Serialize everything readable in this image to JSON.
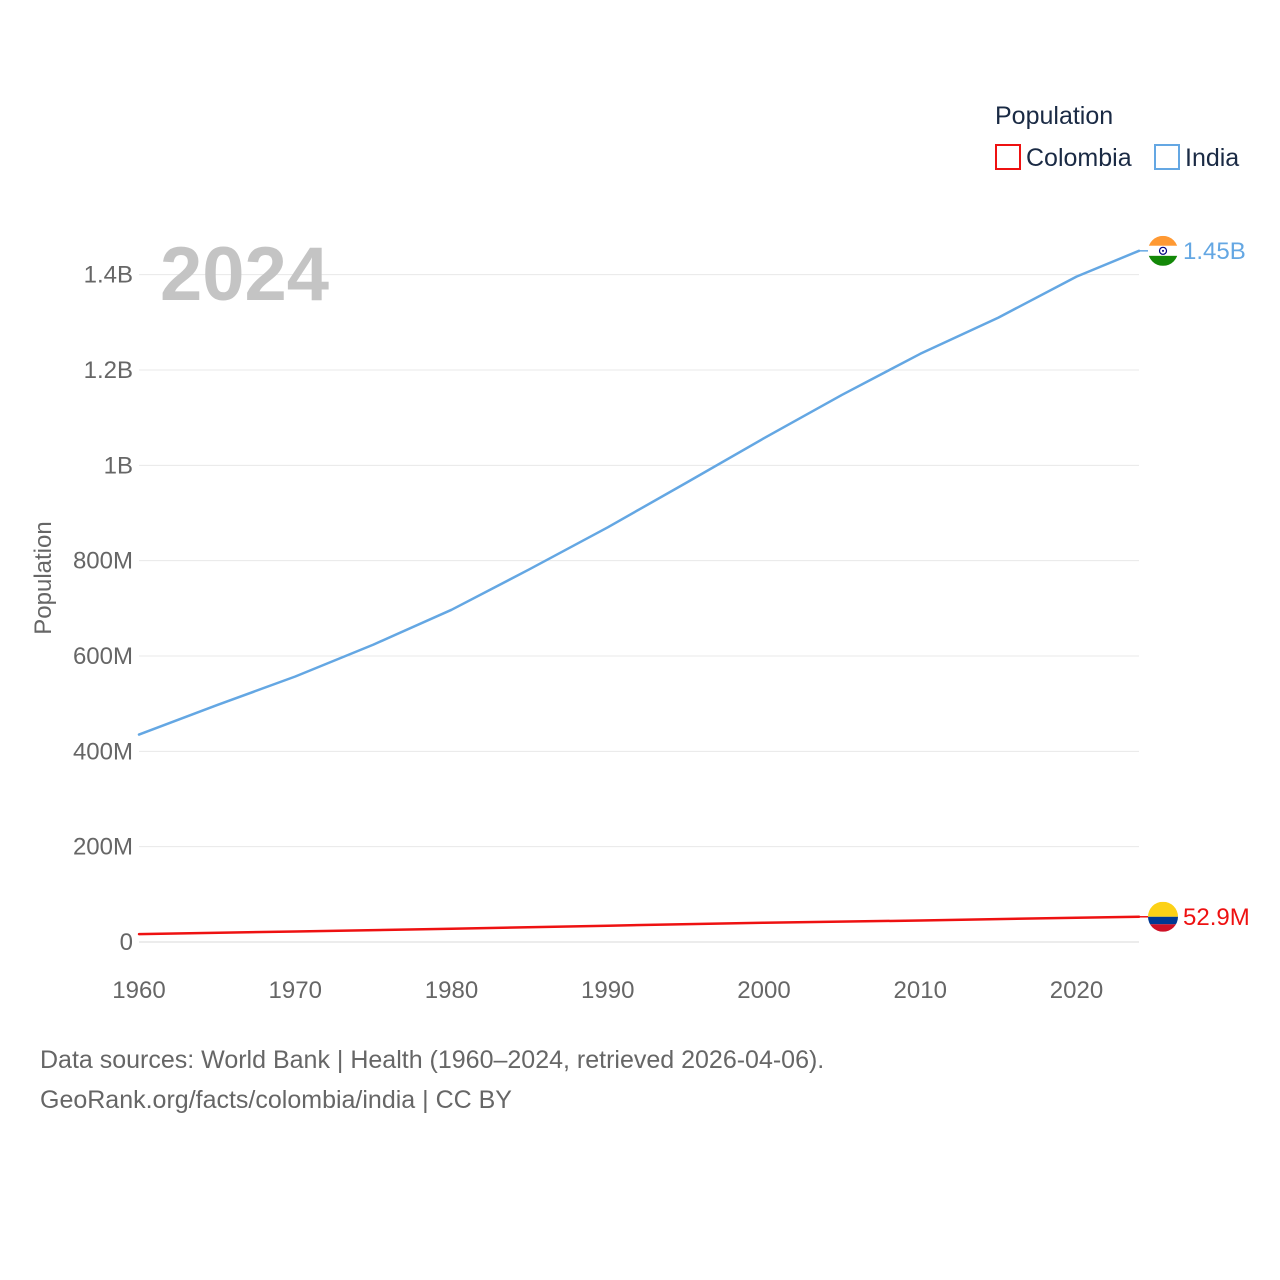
{
  "chart_data": {
    "type": "line",
    "year_label": "2024",
    "ylabel": "Population",
    "xlabel": "",
    "xlim": [
      1960,
      2024
    ],
    "ylim": [
      0,
      1500000000
    ],
    "x_ticks": [
      1960,
      1970,
      1980,
      1990,
      2000,
      2010,
      2020
    ],
    "x_tick_labels": [
      "1960",
      "1970",
      "1980",
      "1990",
      "2000",
      "2010",
      "2020"
    ],
    "y_ticks": [
      0,
      200000000,
      400000000,
      600000000,
      800000000,
      1000000000,
      1200000000,
      1400000000
    ],
    "y_tick_labels": [
      "0",
      "200M",
      "400M",
      "600M",
      "800M",
      "1B",
      "1.2B",
      "1.4B"
    ],
    "grid": true,
    "legend": {
      "title": "Population",
      "position": "top-right",
      "entries": [
        {
          "name": "Colombia",
          "color": "#ee1111"
        },
        {
          "name": "India",
          "color": "#64a7e3"
        }
      ]
    },
    "series": [
      {
        "name": "Colombia",
        "color": "#ee1111",
        "end_label": "52.9M",
        "flag_colors": [
          "#fcd116",
          "#003893",
          "#ce1126"
        ],
        "x": [
          1960,
          1970,
          1980,
          1990,
          2000,
          2010,
          2020,
          2024
        ],
        "values": [
          16500000,
          22000000,
          27700000,
          34300000,
          40400000,
          45200000,
          50900000,
          52900000
        ]
      },
      {
        "name": "India",
        "color": "#64a7e3",
        "end_label": "1.45B",
        "flag_colors": [
          "#ff9933",
          "#ffffff",
          "#138808"
        ],
        "x": [
          1960,
          1965,
          1970,
          1975,
          1980,
          1985,
          1990,
          1995,
          2000,
          2005,
          2010,
          2015,
          2020,
          2024
        ],
        "values": [
          435000000,
          497000000,
          557000000,
          624000000,
          697000000,
          782000000,
          870000000,
          963000000,
          1057000000,
          1148000000,
          1234000000,
          1310000000,
          1396000000,
          1450000000
        ]
      }
    ]
  },
  "footer": {
    "line1": "Data sources: World Bank | Health (1960–2024, retrieved 2026-04-06).",
    "line2": "GeoRank.org/facts/colombia/india | CC BY"
  }
}
